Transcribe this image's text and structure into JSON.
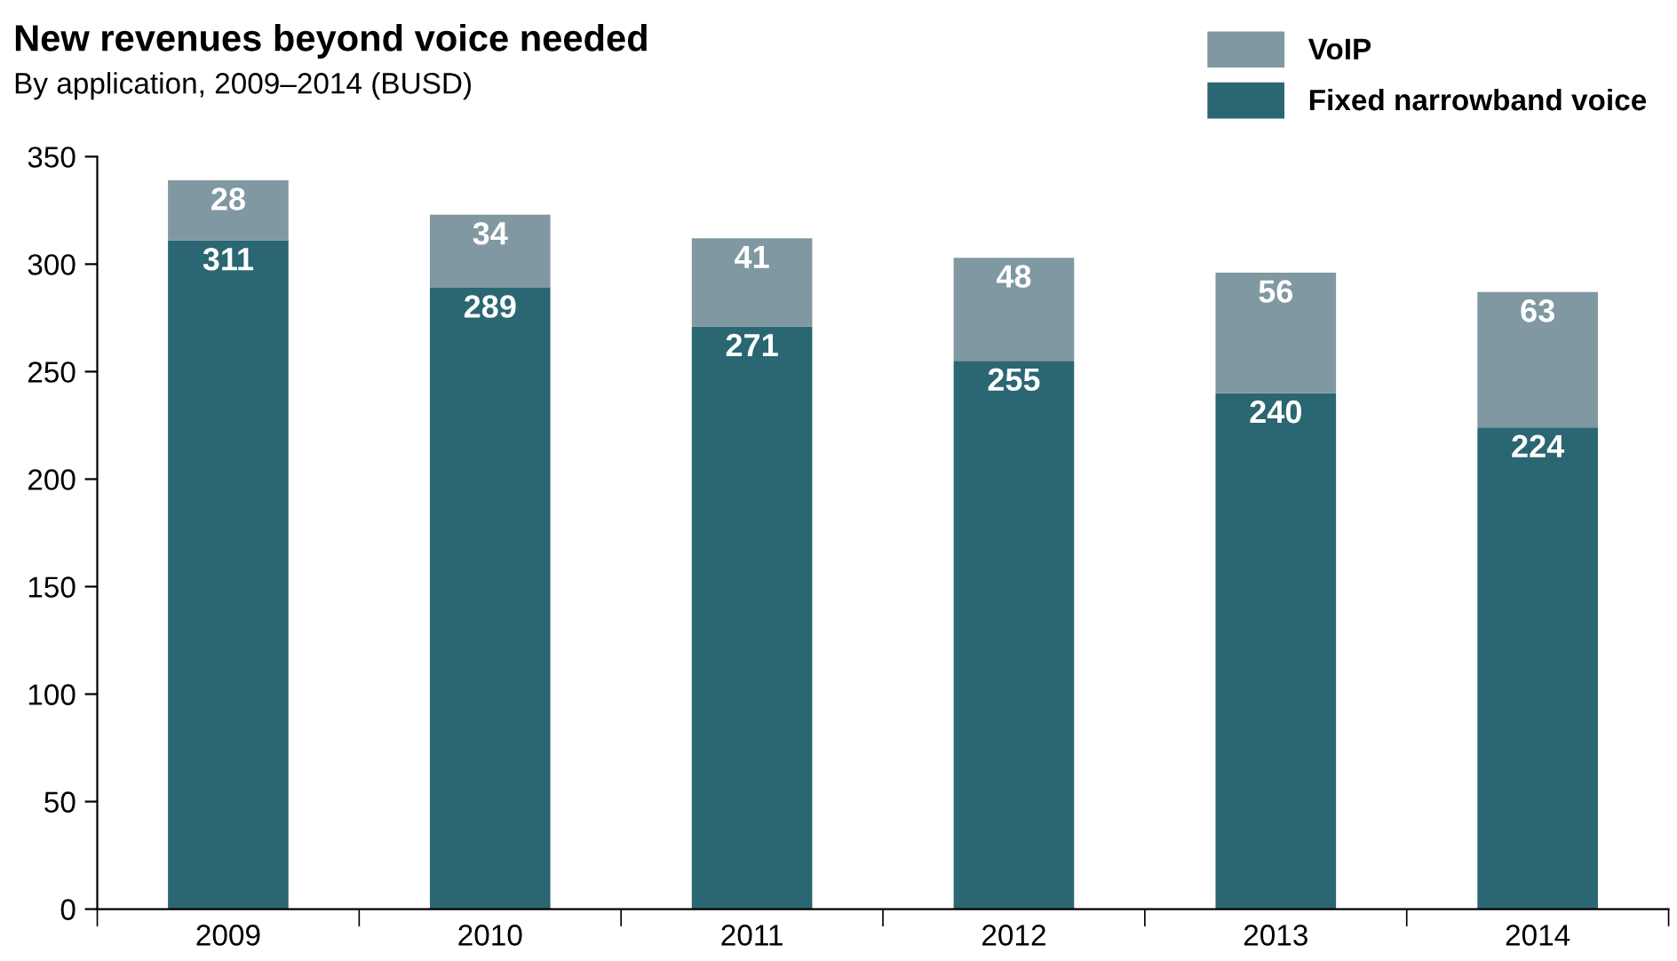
{
  "chart_data": {
    "type": "bar",
    "title": "New revenues beyond voice needed",
    "subtitle": "By application, 2009–2014 (BUSD)",
    "categories": [
      "2009",
      "2010",
      "2011",
      "2012",
      "2013",
      "2014"
    ],
    "stacked": true,
    "data_labels": true,
    "legend": "top right",
    "grid": false,
    "series": [
      {
        "name": "Fixed narrowband voice",
        "color": "#2b6673",
        "values": [
          311,
          289,
          271,
          255,
          240,
          224
        ]
      },
      {
        "name": "VoIP",
        "color": "#7f98a1",
        "values": [
          28,
          34,
          41,
          48,
          56,
          63
        ]
      }
    ],
    "ylim": [
      0,
      350
    ],
    "yticks": [
      0,
      50,
      100,
      150,
      200,
      250,
      300,
      350
    ]
  }
}
